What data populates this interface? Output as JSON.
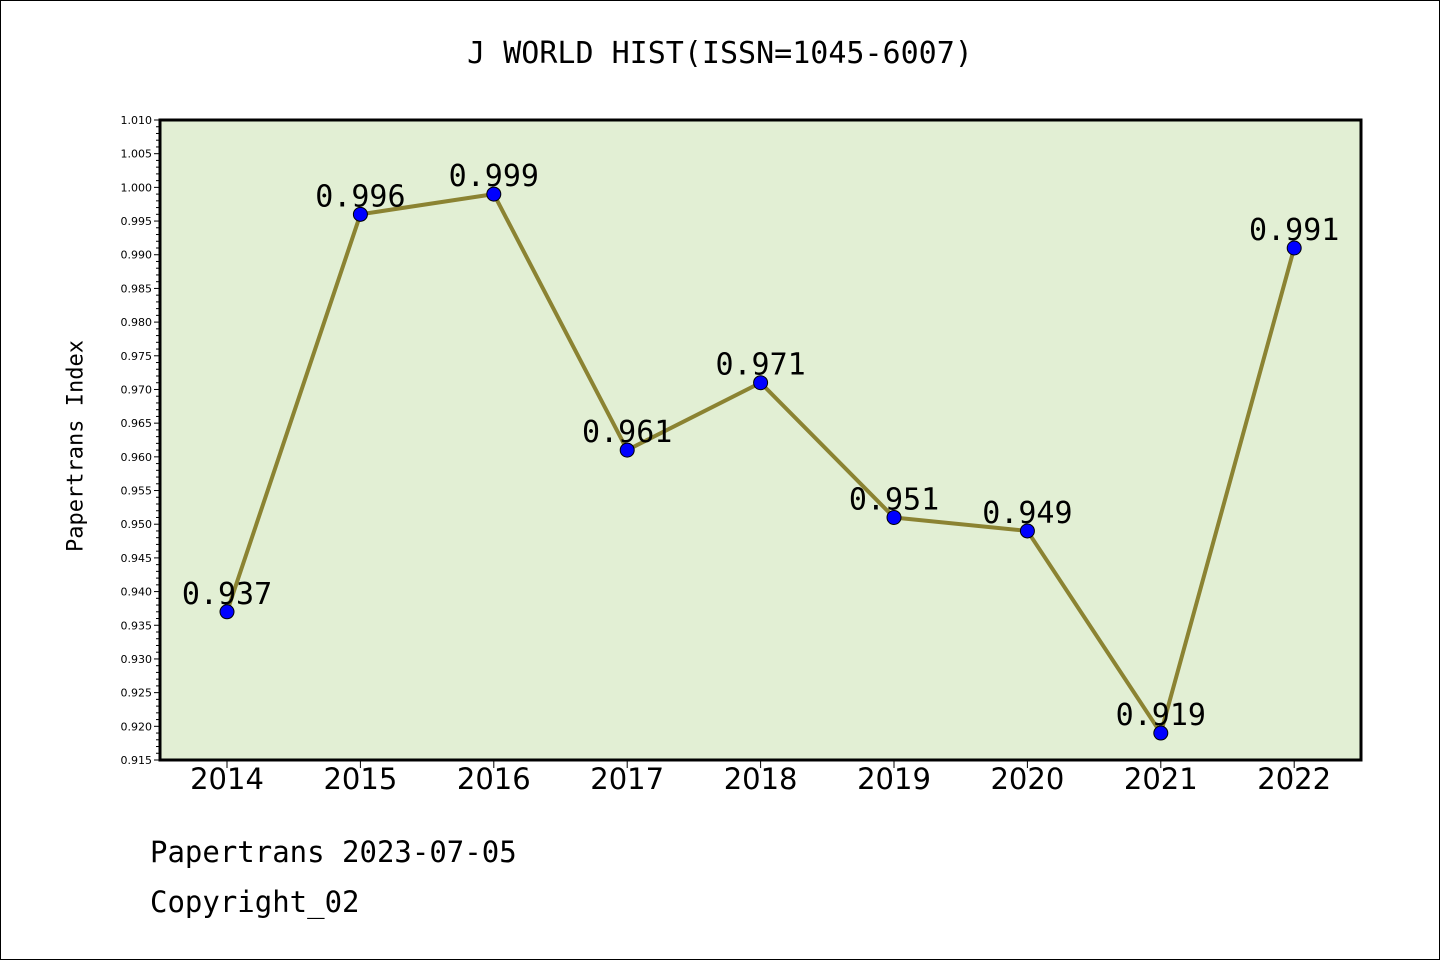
{
  "chart_data": {
    "type": "line",
    "title": "J WORLD HIST(ISSN=1045-6007)",
    "ylabel": "Papertrans Index",
    "xlabel": "",
    "categories": [
      "2014",
      "2015",
      "2016",
      "2017",
      "2018",
      "2019",
      "2020",
      "2021",
      "2022"
    ],
    "values": [
      0.937,
      0.996,
      0.999,
      0.961,
      0.971,
      0.951,
      0.949,
      0.919,
      0.991
    ],
    "data_labels": [
      "0.937",
      "0.996",
      "0.999",
      "0.961",
      "0.971",
      "0.951",
      "0.949",
      "0.919",
      "0.991"
    ],
    "ylim": [
      0.915,
      1.01
    ],
    "yticks": [
      "0.915",
      "0.920",
      "0.925",
      "0.930",
      "0.935",
      "0.940",
      "0.945",
      "0.950",
      "0.955",
      "0.960",
      "0.965",
      "0.970",
      "0.975",
      "0.980",
      "0.985",
      "0.990",
      "0.995",
      "1.000",
      "1.005",
      "1.010"
    ],
    "grid": false,
    "colors": {
      "line": "#8b8332",
      "marker": "#0000ff",
      "plot_background": "#e2efd4",
      "axes": "#000000"
    }
  },
  "footer": {
    "date_text": "Papertrans 2023-07-05",
    "copyright_text": "Copyright_02"
  }
}
